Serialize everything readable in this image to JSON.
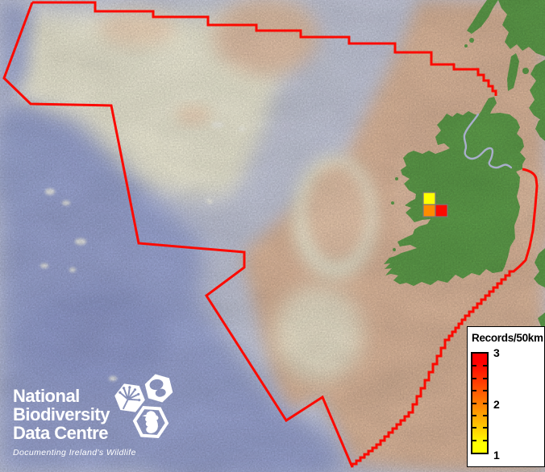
{
  "legend": {
    "title": "Records/50km",
    "labels": [
      "3",
      "2",
      "1"
    ],
    "gradient_top": "#ff0000",
    "gradient_mid": "#ff8c00",
    "gradient_bottom": "#ffff00"
  },
  "logo": {
    "lines": [
      "National",
      "Biodiversity",
      "Data Centre"
    ],
    "tagline": "Documenting Ireland's Wildlife",
    "icons": [
      "tree-icon",
      "butterfly-icon",
      "seahorse-icon"
    ]
  },
  "map": {
    "boundary_color": "#fb0a00",
    "border_color": "#a9aecb",
    "land_color": "#5d9c4a",
    "sea_deep_color": "#9aa4d1",
    "sea_bank_color": "#eae7d3",
    "sea_shelf_color": "#dab59a",
    "grid_cells": [
      {
        "value": 1,
        "color": "#ffff00"
      },
      {
        "value": 2,
        "color": "#ff8c00"
      },
      {
        "value": 3,
        "color": "#fb0a00"
      }
    ],
    "grid_cell_border": "#7a7a7a"
  }
}
